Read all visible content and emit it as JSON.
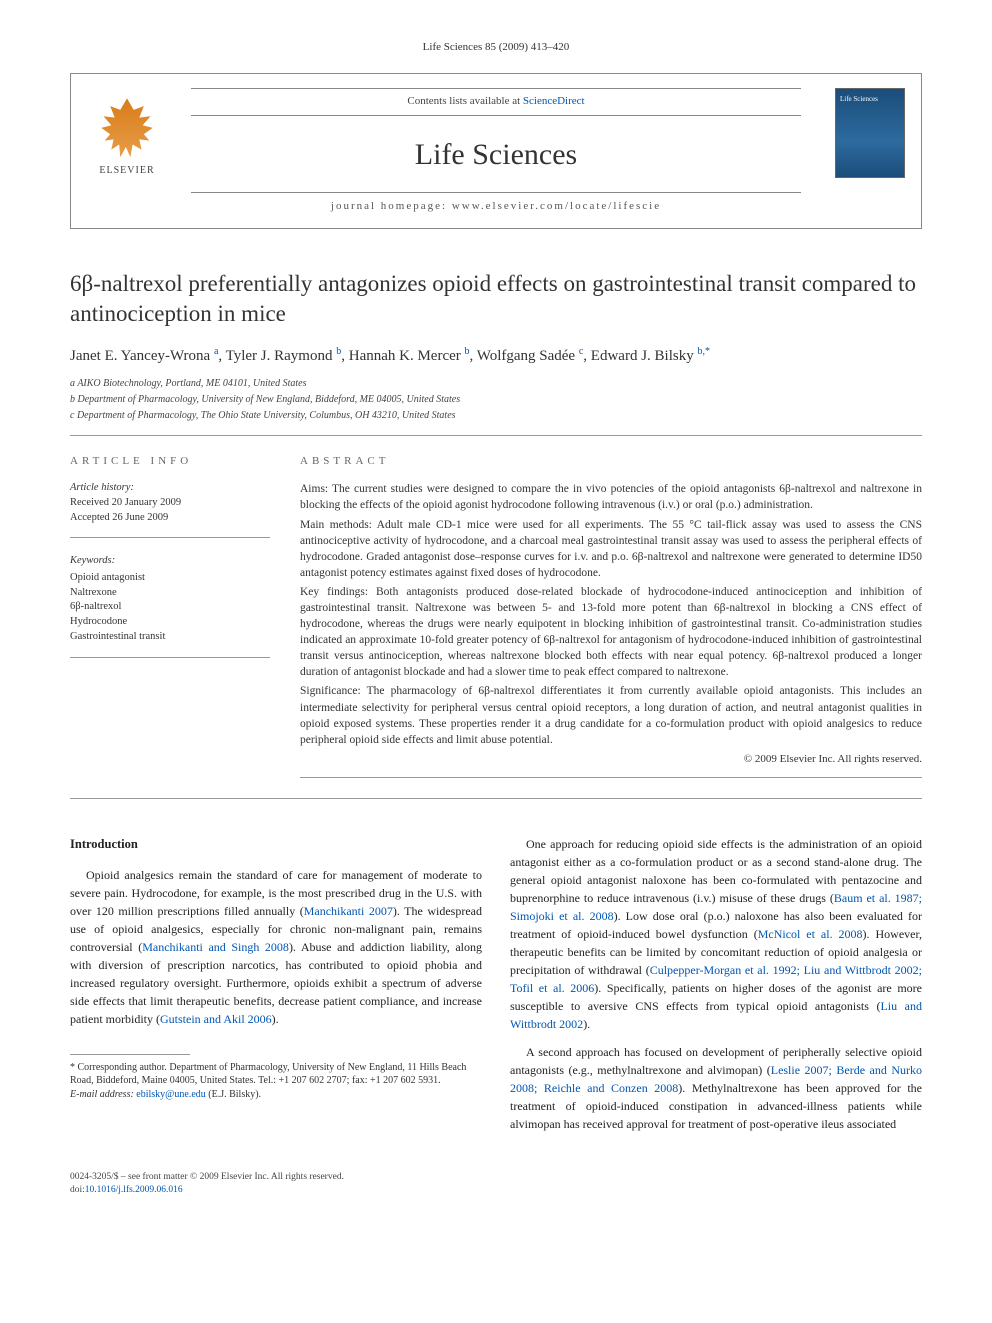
{
  "journal_ref": "Life Sciences 85 (2009) 413–420",
  "header": {
    "contents_prefix": "Contents lists available at ",
    "contents_link": "ScienceDirect",
    "journal_title": "Life Sciences",
    "homepage_prefix": "journal homepage: ",
    "homepage_url": "www.elsevier.com/locate/lifescie",
    "publisher_name": "ELSEVIER",
    "cover_text": "Life Sciences"
  },
  "title": "6β-naltrexol preferentially antagonizes opioid effects on gastrointestinal transit compared to antinociception in mice",
  "authors_html": "Janet E. Yancey-Wrona <sup>a</sup>, Tyler J. Raymond <sup>b</sup>, Hannah K. Mercer <sup>b</sup>, Wolfgang Sadée <sup>c</sup>, Edward J. Bilsky <sup>b,*</sup>",
  "affiliations": [
    "a  AIKO Biotechnology, Portland, ME 04101, United States",
    "b  Department of Pharmacology, University of New England, Biddeford, ME 04005, United States",
    "c  Department of Pharmacology, The Ohio State University, Columbus, OH 43210, United States"
  ],
  "article_info": {
    "label": "article info",
    "history_label": "Article history:",
    "received": "Received 20 January 2009",
    "accepted": "Accepted 26 June 2009",
    "keywords_label": "Keywords:",
    "keywords": [
      "Opioid antagonist",
      "Naltrexone",
      "6β-naltrexol",
      "Hydrocodone",
      "Gastrointestinal transit"
    ]
  },
  "abstract": {
    "label": "abstract",
    "aims": "Aims: The current studies were designed to compare the in vivo potencies of the opioid antagonists 6β-naltrexol and naltrexone in blocking the effects of the opioid agonist hydrocodone following intravenous (i.v.) or oral (p.o.) administration.",
    "methods": "Main methods: Adult male CD-1 mice were used for all experiments. The 55 °C tail-flick assay was used to assess the CNS antinociceptive activity of hydrocodone, and a charcoal meal gastrointestinal transit assay was used to assess the peripheral effects of hydrocodone. Graded antagonist dose–response curves for i.v. and p.o. 6β-naltrexol and naltrexone were generated to determine ID50 antagonist potency estimates against fixed doses of hydrocodone.",
    "findings": "Key findings: Both antagonists produced dose-related blockade of hydrocodone-induced antinociception and inhibition of gastrointestinal transit. Naltrexone was between 5- and 13-fold more potent than 6β-naltrexol in blocking a CNS effect of hydrocodone, whereas the drugs were nearly equipotent in blocking inhibition of gastrointestinal transit. Co-administration studies indicated an approximate 10-fold greater potency of 6β-naltrexol for antagonism of hydrocodone-induced inhibition of gastrointestinal transit versus antinociception, whereas naltrexone blocked both effects with near equal potency. 6β-naltrexol produced a longer duration of antagonist blockade and had a slower time to peak effect compared to naltrexone.",
    "significance": "Significance: The pharmacology of 6β-naltrexol differentiates it from currently available opioid antagonists. This includes an intermediate selectivity for peripheral versus central opioid receptors, a long duration of action, and neutral antagonist qualities in opioid exposed systems. These properties render it a drug candidate for a co-formulation product with opioid analgesics to reduce peripheral opioid side effects and limit abuse potential.",
    "copyright": "© 2009 Elsevier Inc. All rights reserved."
  },
  "body": {
    "intro_heading": "Introduction",
    "p1_a": "Opioid analgesics remain the standard of care for management of moderate to severe pain. Hydrocodone, for example, is the most prescribed drug in the U.S. with over 120 million prescriptions filled annually (",
    "p1_ref1": "Manchikanti 2007",
    "p1_b": "). The widespread use of opioid analgesics, especially for chronic non-malignant pain, remains controversial (",
    "p1_ref2": "Manchikanti and Singh 2008",
    "p1_c": "). Abuse and addiction liability, along with diversion of prescription narcotics, has contributed to opioid phobia and increased regulatory oversight. Furthermore, opioids exhibit a spectrum of adverse side effects that limit therapeutic benefits, decrease patient compliance, and increase patient morbidity (",
    "p1_ref3": "Gutstein and Akil 2006",
    "p1_d": ").",
    "p2_a": "One approach for reducing opioid side effects is the administration of an opioid antagonist either as a co-formulation product or as a second stand-alone drug. The general opioid antagonist naloxone has been co-formulated with pentazocine and buprenorphine to reduce intravenous (i.v.) misuse of these drugs (",
    "p2_ref1": "Baum et al. 1987; Simojoki et al. 2008",
    "p2_b": "). Low dose oral (p.o.) naloxone has also been evaluated for treatment of opioid-induced bowel dysfunction (",
    "p2_ref2": "McNicol et al. 2008",
    "p2_c": "). However, therapeutic benefits can be limited by concomitant reduction of opioid analgesia or precipitation of withdrawal (",
    "p2_ref3": "Culpepper-Morgan et al. 1992; Liu and Wittbrodt 2002; Tofil et al. 2006",
    "p2_d": "). Specifically, patients on higher doses of the agonist are more susceptible to aversive CNS effects from typical opioid antagonists (",
    "p2_ref4": "Liu and Wittbrodt 2002",
    "p2_e": ").",
    "p3_a": "A second approach has focused on development of peripherally selective opioid antagonists (e.g., methylnaltrexone and alvimopan) (",
    "p3_ref1": "Leslie 2007; Berde and Nurko 2008; Reichle and Conzen 2008",
    "p3_b": "). Methylnaltrexone has been approved for the treatment of opioid-induced constipation in advanced-illness patients while alvimopan has received approval for treatment of post-operative ileus associated"
  },
  "corresponding": {
    "text": "* Corresponding author. Department of Pharmacology, University of New England, 11 Hills Beach Road, Biddeford, Maine 04005, United States. Tel.: +1 207 602 2707; fax: +1 207 602 5931.",
    "email_label": "E-mail address: ",
    "email": "ebilsky@une.edu",
    "email_suffix": " (E.J. Bilsky)."
  },
  "footer": {
    "issn": "0024-3205/$ – see front matter © 2009 Elsevier Inc. All rights reserved.",
    "doi_label": "doi:",
    "doi": "10.1016/j.lfs.2009.06.016"
  },
  "colors": {
    "link": "#0056b3",
    "text": "#333333",
    "border": "#888888",
    "cover_bg": "#1a4d7a",
    "logo_orange": "#d97b1a"
  }
}
